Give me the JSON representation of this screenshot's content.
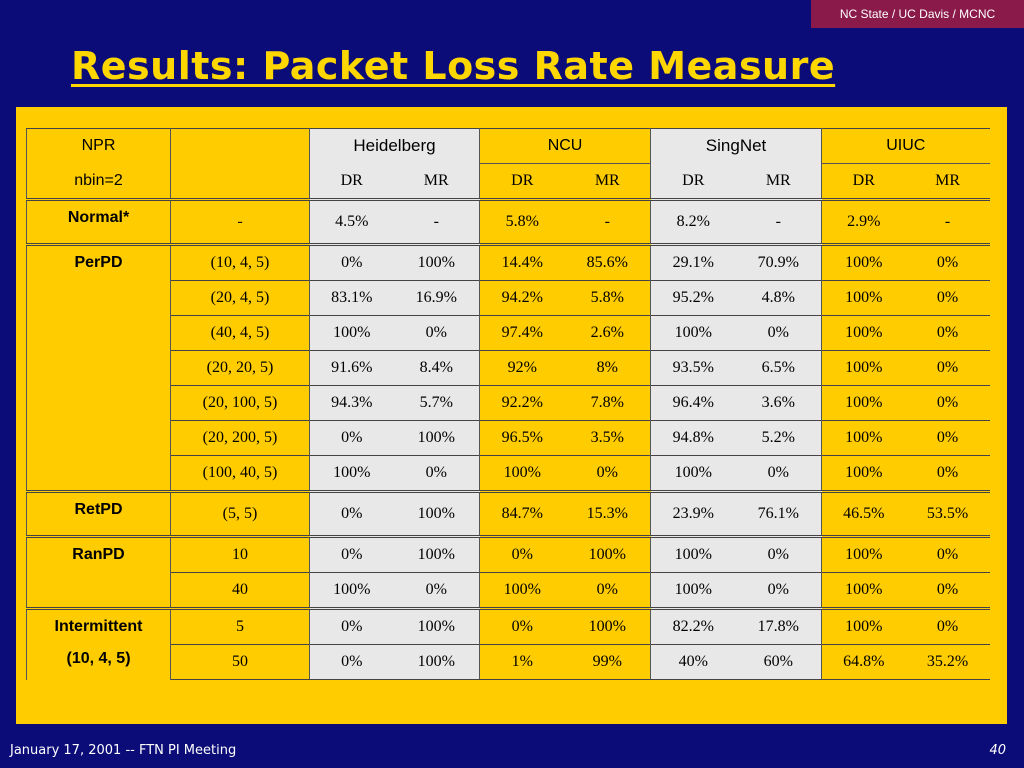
{
  "badge": "NC State / UC Davis / MCNC",
  "title": "Results: Packet Loss Rate Measure",
  "header": {
    "npr": "NPR",
    "nbin": "nbin=2",
    "sites": [
      "Heidelberg",
      "NCU",
      "SingNet",
      "UIUC"
    ],
    "dr": "DR",
    "mr": "MR"
  },
  "rows": {
    "normal": {
      "label": "Normal*",
      "param": "-",
      "vals": [
        "4.5%",
        "-",
        "5.8%",
        "-",
        "8.2%",
        "-",
        "2.9%",
        "-"
      ]
    },
    "perpd": {
      "label": "PerPD",
      "items": [
        {
          "param": "(10, 4, 5)",
          "vals": [
            "0%",
            "100%",
            "14.4%",
            "85.6%",
            "29.1%",
            "70.9%",
            "100%",
            "0%"
          ]
        },
        {
          "param": "(20, 4, 5)",
          "vals": [
            "83.1%",
            "16.9%",
            "94.2%",
            "5.8%",
            "95.2%",
            "4.8%",
            "100%",
            "0%"
          ]
        },
        {
          "param": "(40, 4, 5)",
          "vals": [
            "100%",
            "0%",
            "97.4%",
            "2.6%",
            "100%",
            "0%",
            "100%",
            "0%"
          ]
        },
        {
          "param": "(20, 20, 5)",
          "vals": [
            "91.6%",
            "8.4%",
            "92%",
            "8%",
            "93.5%",
            "6.5%",
            "100%",
            "0%"
          ]
        },
        {
          "param": "(20, 100, 5)",
          "vals": [
            "94.3%",
            "5.7%",
            "92.2%",
            "7.8%",
            "96.4%",
            "3.6%",
            "100%",
            "0%"
          ]
        },
        {
          "param": "(20, 200, 5)",
          "vals": [
            "0%",
            "100%",
            "96.5%",
            "3.5%",
            "94.8%",
            "5.2%",
            "100%",
            "0%"
          ]
        },
        {
          "param": "(100, 40, 5)",
          "vals": [
            "100%",
            "0%",
            "100%",
            "0%",
            "100%",
            "0%",
            "100%",
            "0%"
          ]
        }
      ]
    },
    "retpd": {
      "label": "RetPD",
      "param": "(5, 5)",
      "vals": [
        "0%",
        "100%",
        "84.7%",
        "15.3%",
        "23.9%",
        "76.1%",
        "46.5%",
        "53.5%"
      ]
    },
    "ranpd": {
      "label": "RanPD",
      "items": [
        {
          "param": "10",
          "vals": [
            "0%",
            "100%",
            "0%",
            "100%",
            "100%",
            "0%",
            "100%",
            "0%"
          ]
        },
        {
          "param": "40",
          "vals": [
            "100%",
            "0%",
            "100%",
            "0%",
            "100%",
            "0%",
            "100%",
            "0%"
          ]
        }
      ]
    },
    "intermittent": {
      "label": "Intermittent",
      "sublabel": "(10, 4, 5)",
      "items": [
        {
          "param": "5",
          "vals": [
            "0%",
            "100%",
            "0%",
            "100%",
            "82.2%",
            "17.8%",
            "100%",
            "0%"
          ]
        },
        {
          "param": "50",
          "vals": [
            "0%",
            "100%",
            "1%",
            "99%",
            "40%",
            "60%",
            "64.8%",
            "35.2%"
          ]
        }
      ]
    }
  },
  "footer": {
    "left": "January 17, 2001 -- FTN PI Meeting",
    "right": "40"
  },
  "colors": {
    "background": "#0b0c78",
    "panel": "#ffcc00",
    "title": "#ffd700",
    "badge": "#8a1a4a",
    "cell_shade": "#e8e8e8"
  }
}
